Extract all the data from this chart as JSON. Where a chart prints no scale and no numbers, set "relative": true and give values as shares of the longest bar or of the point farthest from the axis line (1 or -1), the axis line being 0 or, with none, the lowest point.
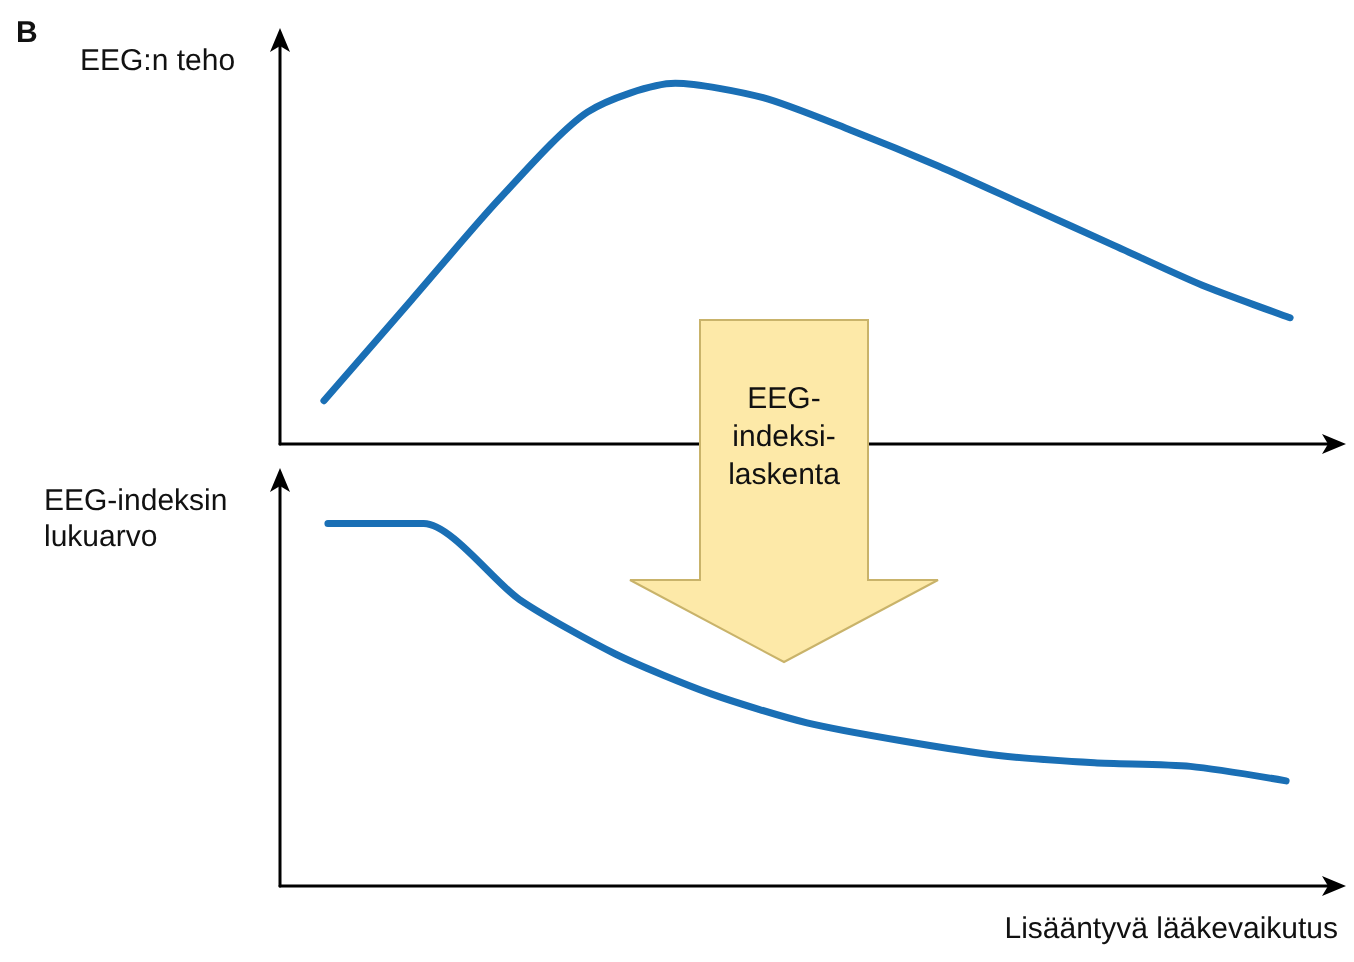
{
  "chart_data": [
    {
      "type": "line",
      "ylabel": "EEG:n teho",
      "relative": true,
      "grid": false,
      "marker": "none",
      "annotations": [
        "B"
      ],
      "categories": [
        null,
        null,
        null,
        null,
        null,
        null,
        null,
        null,
        null,
        null,
        null,
        null
      ],
      "series": [
        {
          "color": "#1a6fb5",
          "values": [
            0.12,
            0.4,
            0.68,
            0.92,
            1.0,
            0.96,
            0.87,
            0.77,
            0.66,
            0.55,
            0.44,
            0.35
          ]
        }
      ]
    },
    {
      "type": "line",
      "ylabel": "EEG-indeksin lukuarvo",
      "xlabel": "Lisääntyvä lääkevaikutus",
      "relative": true,
      "grid": false,
      "marker": "none",
      "annotations": [
        "EEG-indeksi-laskenta"
      ],
      "categories": [
        null,
        null,
        null,
        null,
        null,
        null,
        null,
        null,
        null,
        null,
        null
      ],
      "series": [
        {
          "color": "#1a6fb5",
          "values": [
            1.0,
            1.0,
            0.79,
            0.64,
            0.53,
            0.45,
            0.4,
            0.36,
            0.34,
            0.33,
            0.29
          ]
        }
      ]
    }
  ]
}
